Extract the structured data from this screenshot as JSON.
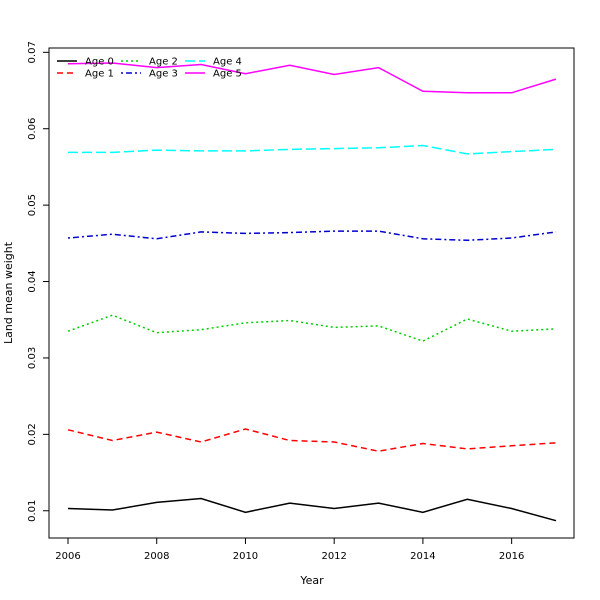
{
  "chart_data": {
    "type": "line",
    "title": "",
    "xlabel": "Year",
    "ylabel": "Land mean weight",
    "x": [
      2006,
      2007,
      2008,
      2009,
      2010,
      2011,
      2012,
      2013,
      2014,
      2015,
      2016,
      2017
    ],
    "xlim": [
      2006,
      2017
    ],
    "ylim": [
      0.0065,
      0.0705
    ],
    "x_ticks": [
      2006,
      2008,
      2010,
      2012,
      2014,
      2016
    ],
    "x_tick_labels": [
      "2006",
      "2008",
      "2010",
      "2012",
      "2014",
      "2016"
    ],
    "y_ticks": [
      0.01,
      0.02,
      0.03,
      0.04,
      0.05,
      0.06,
      0.07
    ],
    "y_tick_labels": [
      "0.01",
      "0.02",
      "0.03",
      "0.04",
      "0.05",
      "0.06",
      "0.07"
    ],
    "grid": false,
    "legend_position": "top-left",
    "legend_columns": 3,
    "series": [
      {
        "name": "Age 0",
        "color": "#000000",
        "dash": "solid",
        "values": [
          0.0103,
          0.0101,
          0.0111,
          0.0116,
          0.0098,
          0.011,
          0.0103,
          0.011,
          0.0098,
          0.0115,
          0.0103,
          0.0087
        ]
      },
      {
        "name": "Age 1",
        "color": "#ff0000",
        "dash": "dashed",
        "values": [
          0.0206,
          0.0192,
          0.0203,
          0.019,
          0.0207,
          0.0192,
          0.019,
          0.0178,
          0.0188,
          0.0181,
          0.0185,
          0.0189
        ]
      },
      {
        "name": "Age 2",
        "color": "#00cd00",
        "dash": "dotted",
        "values": [
          0.0335,
          0.0356,
          0.0333,
          0.0337,
          0.0346,
          0.0349,
          0.034,
          0.0342,
          0.0322,
          0.0351,
          0.0335,
          0.0338
        ]
      },
      {
        "name": "Age 3",
        "color": "#0000cd",
        "dash": "dotdash",
        "values": [
          0.0457,
          0.0462,
          0.0456,
          0.0465,
          0.0463,
          0.0464,
          0.0466,
          0.0466,
          0.0456,
          0.0454,
          0.0457,
          0.0465
        ]
      },
      {
        "name": "Age 4",
        "color": "#00ffff",
        "dash": "longdash",
        "values": [
          0.0569,
          0.0569,
          0.0572,
          0.0571,
          0.0571,
          0.0573,
          0.0574,
          0.0575,
          0.0578,
          0.0567,
          0.057,
          0.0573
        ]
      },
      {
        "name": "Age 5",
        "color": "#ff00ff",
        "dash": "solid",
        "values": [
          0.0685,
          0.0686,
          0.068,
          0.0684,
          0.0672,
          0.0683,
          0.0671,
          0.068,
          0.0649,
          0.0647,
          0.0647,
          0.0665
        ]
      }
    ]
  }
}
